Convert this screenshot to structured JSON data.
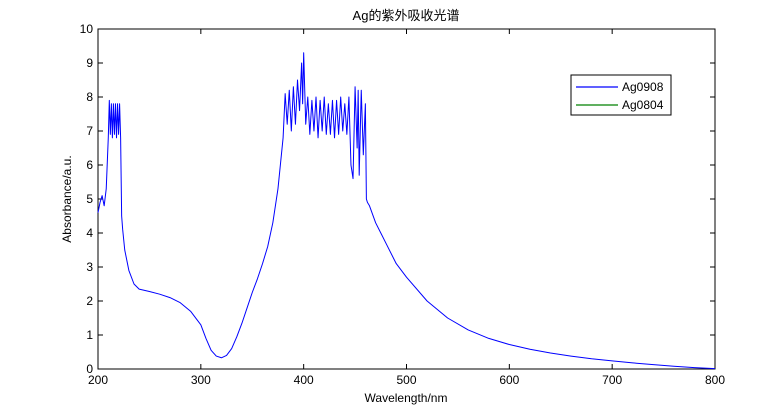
{
  "chart_data": {
    "type": "line",
    "title": "Ag的紫外吸收光谱",
    "xlabel": "Wavelength/nm",
    "ylabel": "Absorbance/a.u.",
    "xlim": [
      200,
      800
    ],
    "ylim": [
      0,
      10
    ],
    "xticks": [
      200,
      300,
      400,
      500,
      600,
      700,
      800
    ],
    "yticks": [
      0,
      1,
      2,
      3,
      4,
      5,
      6,
      7,
      8,
      9,
      10
    ],
    "grid": false,
    "legend_position": "top-right",
    "series": [
      {
        "name": "Ag0908",
        "color": "#0000ff",
        "x": [
          200,
          202,
          204,
          206,
          208,
          210,
          211,
          212,
          213,
          214,
          215,
          216,
          217,
          218,
          219,
          220,
          221,
          222,
          223,
          224,
          226,
          230,
          235,
          240,
          250,
          260,
          270,
          280,
          290,
          300,
          305,
          310,
          315,
          320,
          325,
          330,
          335,
          340,
          345,
          350,
          355,
          360,
          365,
          370,
          375,
          380,
          382,
          384,
          386,
          388,
          390,
          392,
          394,
          396,
          398,
          399,
          400,
          402,
          404,
          406,
          408,
          410,
          412,
          414,
          416,
          418,
          420,
          422,
          424,
          426,
          428,
          430,
          432,
          434,
          436,
          438,
          440,
          442,
          444,
          446,
          448,
          450,
          452,
          453,
          454,
          456,
          458,
          460,
          461,
          462,
          464,
          470,
          480,
          490,
          500,
          520,
          540,
          560,
          580,
          600,
          620,
          640,
          660,
          680,
          700,
          720,
          740,
          760,
          780,
          800
        ],
        "y": [
          4.6,
          4.9,
          5.1,
          4.8,
          5.3,
          6.8,
          7.9,
          6.9,
          7.8,
          6.8,
          7.8,
          6.9,
          7.8,
          6.8,
          7.8,
          6.9,
          7.8,
          6.8,
          4.5,
          4.1,
          3.5,
          2.9,
          2.5,
          2.35,
          2.28,
          2.2,
          2.1,
          1.95,
          1.7,
          1.3,
          0.9,
          0.55,
          0.38,
          0.33,
          0.4,
          0.6,
          0.95,
          1.35,
          1.8,
          2.25,
          2.65,
          3.1,
          3.6,
          4.3,
          5.3,
          6.8,
          8.1,
          7.2,
          8.2,
          7.0,
          8.3,
          7.2,
          8.5,
          7.6,
          9.0,
          7.8,
          9.3,
          7.2,
          8.0,
          6.9,
          7.9,
          7.0,
          8.0,
          6.8,
          7.9,
          7.0,
          8.0,
          6.9,
          7.8,
          6.9,
          7.9,
          6.8,
          7.9,
          6.9,
          8.0,
          7.0,
          7.8,
          6.9,
          8.0,
          6.0,
          5.6,
          8.3,
          6.5,
          8.2,
          5.7,
          8.2,
          6.3,
          7.8,
          5.0,
          4.9,
          4.8,
          4.3,
          3.7,
          3.1,
          2.7,
          2.0,
          1.5,
          1.15,
          0.9,
          0.72,
          0.58,
          0.47,
          0.38,
          0.3,
          0.24,
          0.18,
          0.13,
          0.08,
          0.04,
          0.01
        ]
      },
      {
        "name": "Ag0804",
        "color": "#008000",
        "x": [],
        "y": []
      }
    ]
  }
}
